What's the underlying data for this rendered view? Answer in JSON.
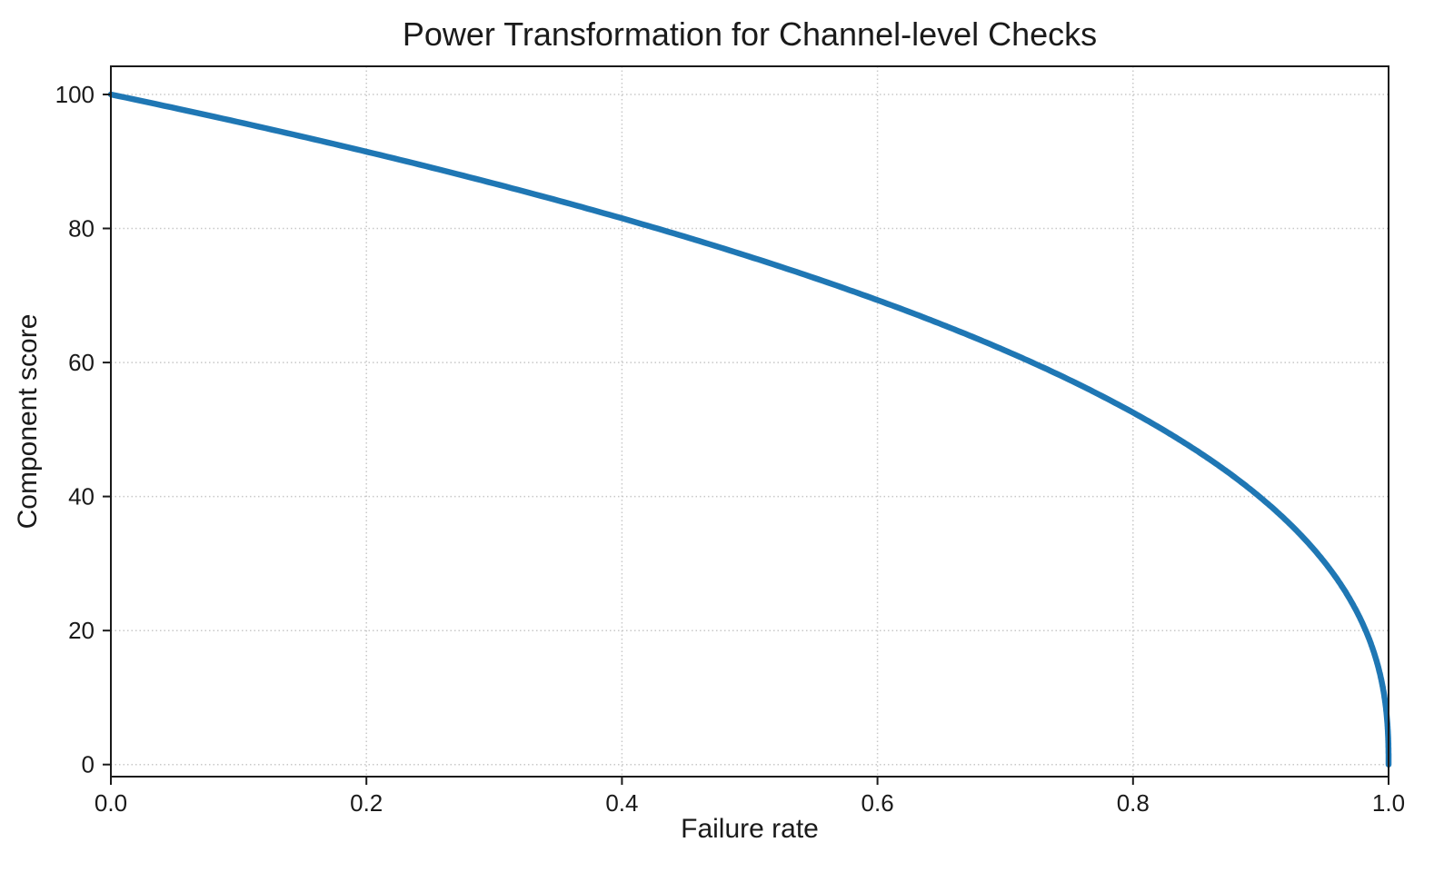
{
  "figure": {
    "background": "#ffffff"
  },
  "chart_data": {
    "type": "line",
    "title": "Power Transformation for Channel-level Checks",
    "xlabel": "Failure rate",
    "ylabel": "Component score",
    "xlim": [
      0.0,
      1.0
    ],
    "ylim": [
      0,
      100
    ],
    "x_tick_values": [
      0.0,
      0.2,
      0.4,
      0.6,
      0.8,
      1.0
    ],
    "x_tick_labels": [
      "0.0",
      "0.2",
      "0.4",
      "0.6",
      "0.8",
      "1.0"
    ],
    "y_tick_values": [
      0,
      20,
      40,
      60,
      80,
      100
    ],
    "y_tick_labels": [
      "0",
      "20",
      "40",
      "60",
      "80",
      "100"
    ],
    "grid": true,
    "grid_style": "dotted",
    "legend": false,
    "series": [
      {
        "formula": "y = 100 * (1 - x)^0.4",
        "exponent": 0.4,
        "scale": 100,
        "color": "#1f77b4",
        "x": [
          0.0,
          0.05,
          0.1,
          0.15,
          0.2,
          0.25,
          0.3,
          0.35,
          0.4,
          0.45,
          0.5,
          0.55,
          0.6,
          0.65,
          0.7,
          0.75,
          0.8,
          0.85,
          0.9,
          0.95,
          1.0
        ],
        "y": [
          100.0,
          97.97,
          95.87,
          93.71,
          91.46,
          89.13,
          86.7,
          84.17,
          81.52,
          78.73,
          75.79,
          72.66,
          69.31,
          65.71,
          61.78,
          57.43,
          52.53,
          46.82,
          39.81,
          30.17,
          0.0
        ]
      }
    ]
  },
  "style": {
    "line_color": "#1f77b4",
    "grid_color": "#c8c8c8",
    "spine_color": "#1a1a1a",
    "text_color": "#1a1a1a"
  }
}
